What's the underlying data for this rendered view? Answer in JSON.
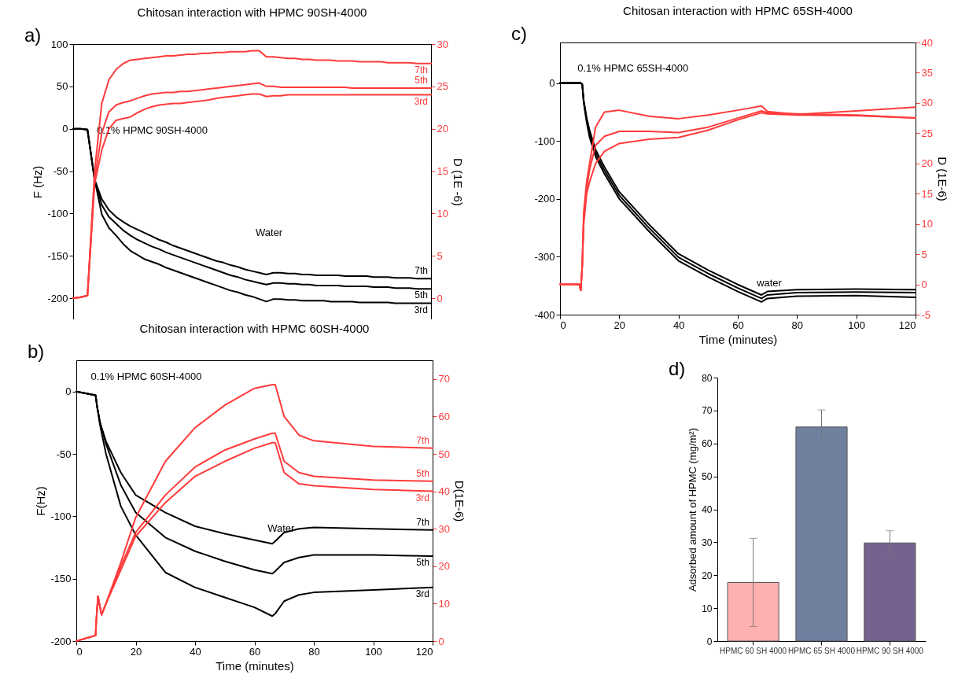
{
  "chart_data": [
    {
      "type": "line",
      "title": "Chitosan interaction with HPMC 90SH-4000",
      "ylabel": "F (Hz)",
      "y2label": "D (1E -6)",
      "tick_labels": "y",
      "categories": [
        null,
        null,
        null,
        null,
        null,
        null,
        null,
        null,
        null,
        null,
        null,
        null,
        null,
        null,
        null,
        null,
        null,
        null,
        null,
        null,
        null,
        null,
        null,
        null,
        null,
        null,
        null,
        null,
        null,
        null,
        null,
        null,
        null,
        null,
        null,
        null,
        null,
        null,
        null,
        null,
        null,
        null,
        null,
        null,
        null,
        null,
        null,
        null,
        null,
        null,
        null
      ],
      "ylim": [
        -225,
        100
      ],
      "yticks": [
        -200,
        -150,
        -100,
        -50,
        0,
        50,
        100
      ],
      "y2lim": [
        -2.5,
        30
      ],
      "y2ticks": [
        0,
        5,
        10,
        15,
        20,
        25,
        30
      ],
      "annotations": [
        "a)",
        "0.1% HPMC 90SH-4000",
        "Water"
      ],
      "series": [
        {
          "name": "7th",
          "color": "#000000",
          "values": [
            0,
            0,
            -1,
            -60,
            -83,
            -96,
            -104,
            -110,
            -115,
            -119,
            -123,
            -127,
            -131,
            -134,
            -138,
            -141,
            -144,
            -147,
            -150,
            -153,
            -156,
            -158,
            -161,
            -163,
            -166,
            -168,
            -170,
            -172,
            -170,
            -170,
            -171,
            -171,
            -172,
            -172,
            -173,
            -173,
            -173,
            -173,
            -174,
            -174,
            -174,
            -174,
            -175,
            -175,
            -175,
            -176,
            -176,
            -176,
            -177,
            -177,
            -177
          ]
        },
        {
          "name": "5th",
          "color": "#000000",
          "values": [
            0,
            0,
            -1,
            -60,
            -90,
            -104,
            -112,
            -120,
            -126,
            -131,
            -135,
            -139,
            -142,
            -146,
            -149,
            -152,
            -155,
            -158,
            -161,
            -164,
            -167,
            -170,
            -173,
            -175,
            -178,
            -180,
            -182,
            -184,
            -182,
            -182,
            -183,
            -183,
            -184,
            -184,
            -185,
            -185,
            -185,
            -185,
            -186,
            -186,
            -186,
            -186,
            -187,
            -187,
            -187,
            -188,
            -188,
            -188,
            -189,
            -189,
            -189
          ]
        },
        {
          "name": "3rd",
          "color": "#000000",
          "values": [
            0,
            0,
            -1,
            -60,
            -101,
            -117,
            -126,
            -136,
            -144,
            -149,
            -154,
            -157,
            -160,
            -164,
            -167,
            -170,
            -173,
            -176,
            -179,
            -182,
            -185,
            -188,
            -191,
            -193,
            -196,
            -198,
            -201,
            -204,
            -201,
            -201,
            -202,
            -202,
            -203,
            -203,
            -203,
            -203,
            -204,
            -204,
            -204,
            -204,
            -205,
            -205,
            -205,
            -205,
            -205,
            -206,
            -206,
            -206,
            -206,
            -206,
            -206
          ]
        },
        {
          "name": "7th",
          "color": "#ff3b3b",
          "axis": "y2",
          "values": [
            0,
            0.1,
            0.3,
            15,
            23,
            25.8,
            27,
            27.7,
            28.1,
            28.2,
            28.3,
            28.4,
            28.5,
            28.6,
            28.6,
            28.7,
            28.8,
            28.8,
            28.9,
            28.9,
            29,
            29,
            29.1,
            29.1,
            29.1,
            29.2,
            29.2,
            28.5,
            28.5,
            28.4,
            28.3,
            28.3,
            28.2,
            28.2,
            28.1,
            28.1,
            28.1,
            28,
            28,
            28,
            27.9,
            27.9,
            27.9,
            27.9,
            27.8,
            27.8,
            27.8,
            27.8,
            27.7,
            27.7,
            27.7
          ]
        },
        {
          "name": "5th",
          "color": "#ff3b3b",
          "axis": "y2",
          "values": [
            0,
            0.1,
            0.3,
            14,
            19.5,
            22,
            22.8,
            23.1,
            23.3,
            23.6,
            23.9,
            24.1,
            24.2,
            24.3,
            24.3,
            24.4,
            24.4,
            24.5,
            24.6,
            24.7,
            24.8,
            24.9,
            25,
            25.1,
            25.2,
            25.3,
            25.4,
            25,
            25,
            24.9,
            24.9,
            24.9,
            24.9,
            24.9,
            24.9,
            24.9,
            24.9,
            24.9,
            24.9,
            24.8,
            24.8,
            24.8,
            24.8,
            24.8,
            24.8,
            24.8,
            24.8,
            24.8,
            24.8,
            24.8,
            24.8
          ]
        },
        {
          "name": "3rd",
          "color": "#ff3b3b",
          "axis": "y2",
          "values": [
            0,
            0.1,
            0.3,
            13.5,
            17.5,
            20,
            21,
            21.2,
            21.4,
            21.9,
            22.3,
            22.6,
            22.8,
            22.9,
            23,
            23,
            23.1,
            23.2,
            23.3,
            23.4,
            23.6,
            23.7,
            23.8,
            23.9,
            24,
            24.1,
            24.1,
            23.8,
            23.9,
            23.9,
            24,
            24,
            24,
            24,
            24,
            24,
            24,
            24,
            24,
            24,
            24,
            24,
            24,
            24,
            24,
            24,
            24,
            24,
            24,
            24,
            24
          ]
        }
      ]
    },
    {
      "type": "line",
      "title": "Chitosan interaction with HPMC 60SH-4000",
      "xlabel": "Time (minutes)",
      "ylabel": "F(Hz)",
      "y2label": "D(1E-6)",
      "xlim": [
        0,
        120
      ],
      "xticks": [
        0,
        20,
        40,
        60,
        80,
        100,
        120
      ],
      "ylim": [
        -200,
        25
      ],
      "yticks": [
        -200,
        -150,
        -100,
        -50,
        0
      ],
      "y2lim": [
        0,
        75
      ],
      "y2ticks": [
        0,
        10,
        20,
        30,
        40,
        50,
        60,
        70
      ],
      "annotations": [
        "b)",
        {
          "text": "0.1% HPMC 60SH-4000",
          "x": 6.5,
          "y": 0
        },
        {
          "text": "Water",
          "x": 66,
          "y": -122
        }
      ],
      "series": [
        {
          "name": "7th",
          "color": "#000000",
          "x": [
            0,
            6.5,
            7,
            8,
            10,
            15,
            20,
            30,
            40,
            50,
            60,
            66,
            67,
            70,
            75,
            80,
            100,
            120
          ],
          "values": [
            0,
            -3,
            -12,
            -25,
            -40,
            -65,
            -83,
            -97,
            -108,
            -114,
            -119,
            -122,
            -120,
            -113,
            -110,
            -109,
            -110,
            -111
          ]
        },
        {
          "name": "5th",
          "color": "#000000",
          "x": [
            0,
            6.5,
            7,
            8,
            10,
            15,
            20,
            30,
            40,
            50,
            60,
            66,
            67,
            70,
            75,
            80,
            100,
            120
          ],
          "values": [
            0,
            -3,
            -12,
            -25,
            -42,
            -75,
            -97,
            -117,
            -128,
            -136,
            -143,
            -146,
            -144,
            -137,
            -133,
            -131,
            -131,
            -132
          ]
        },
        {
          "name": "3rd",
          "color": "#000000",
          "x": [
            0,
            6.5,
            7,
            8,
            10,
            15,
            20,
            30,
            40,
            50,
            60,
            66,
            67,
            70,
            75,
            80,
            100,
            120
          ],
          "values": [
            0,
            -3,
            -12,
            -27,
            -50,
            -92,
            -115,
            -145,
            -157,
            -165,
            -173,
            -180,
            -178,
            -168,
            -163,
            -161,
            -159,
            -157
          ]
        },
        {
          "name": "7th",
          "color": "#ff3b3b",
          "axis": "y2",
          "x": [
            0,
            6.5,
            6.7,
            7.3,
            8.5,
            10,
            15,
            20,
            30,
            40,
            50,
            60,
            66,
            67,
            70,
            75,
            80,
            100,
            120
          ],
          "values": [
            0,
            1.5,
            5,
            12,
            7,
            10,
            21,
            33,
            48,
            57,
            63,
            67.5,
            68.5,
            68.5,
            60,
            55,
            53.5,
            52,
            51.5
          ]
        },
        {
          "name": "5th",
          "color": "#ff3b3b",
          "axis": "y2",
          "x": [
            0,
            6.5,
            6.7,
            7.3,
            8.5,
            10,
            15,
            20,
            30,
            40,
            50,
            60,
            66,
            67,
            70,
            75,
            80,
            100,
            120
          ],
          "values": [
            0,
            1.5,
            5,
            12,
            7,
            10,
            20,
            29,
            39,
            46.5,
            51,
            54,
            55.5,
            55.5,
            48,
            45,
            44,
            43,
            42.7
          ]
        },
        {
          "name": "3rd",
          "color": "#ff3b3b",
          "axis": "y2",
          "x": [
            0,
            6.5,
            6.7,
            7.3,
            8.5,
            10,
            15,
            20,
            30,
            40,
            50,
            60,
            66,
            67,
            70,
            75,
            80,
            100,
            120
          ],
          "values": [
            0,
            1.5,
            5,
            12,
            7,
            10,
            19,
            28,
            37,
            44,
            48,
            51.5,
            53,
            53,
            45,
            42,
            41.5,
            40.5,
            40
          ]
        }
      ]
    },
    {
      "type": "line",
      "title": "Chitosan interaction with HPMC 65SH-4000",
      "xlabel": "Time (minutes)",
      "y2label": "D (1E-6)",
      "xlim": [
        0,
        120
      ],
      "xticks": [
        0,
        20,
        40,
        60,
        80,
        100,
        120
      ],
      "ylim": [
        -400,
        70
      ],
      "yticks": [
        -400,
        -300,
        -200,
        -100,
        0
      ],
      "y2lim": [
        -5,
        40
      ],
      "y2ticks": [
        -5,
        0,
        5,
        10,
        15,
        20,
        25,
        30,
        35,
        40
      ],
      "annotations": [
        "c)",
        {
          "text": "0.1% HPMC 65SH-4000",
          "x": 7.5,
          "y": 0
        },
        {
          "text": "water",
          "x": 68,
          "y": -372
        }
      ],
      "series": [
        {
          "color": "#000000",
          "x": [
            0,
            7,
            7.5,
            8,
            9,
            10,
            12,
            15,
            20,
            30,
            40,
            50,
            60,
            68,
            70,
            80,
            100,
            120
          ],
          "values": [
            0,
            0,
            -2,
            -30,
            -60,
            -82,
            -115,
            -145,
            -188,
            -244,
            -295,
            -323,
            -348,
            -366,
            -360,
            -357,
            -356,
            -357
          ]
        },
        {
          "color": "#000000",
          "x": [
            0,
            7,
            7.5,
            8,
            9,
            10,
            12,
            15,
            20,
            30,
            40,
            50,
            60,
            68,
            70,
            80,
            100,
            120
          ],
          "values": [
            0,
            0,
            -2,
            -32,
            -64,
            -88,
            -121,
            -151,
            -194,
            -250,
            -301,
            -329,
            -354,
            -372,
            -366,
            -362,
            -361,
            -362
          ]
        },
        {
          "color": "#000000",
          "x": [
            0,
            7,
            7.5,
            8,
            9,
            10,
            12,
            15,
            20,
            30,
            40,
            50,
            60,
            68,
            70,
            80,
            100,
            120
          ],
          "values": [
            0,
            0,
            -2,
            -34,
            -68,
            -94,
            -127,
            -157,
            -200,
            -256,
            -307,
            -335,
            -360,
            -378,
            -372,
            -368,
            -367,
            -370
          ]
        },
        {
          "color": "#ff3b3b",
          "axis": "y2",
          "x": [
            0,
            6.5,
            7,
            7.5,
            8,
            9,
            10,
            12,
            15,
            20,
            30,
            40,
            50,
            60,
            68,
            70,
            80,
            100,
            120
          ],
          "values": [
            0,
            0,
            -1,
            3,
            12,
            17,
            20,
            26,
            28.5,
            28.8,
            27.8,
            27.4,
            28,
            28.8,
            29.5,
            28.6,
            28.1,
            28.7,
            29.3
          ]
        },
        {
          "color": "#ff3b3b",
          "axis": "y2",
          "x": [
            0,
            6.5,
            7,
            7.5,
            8,
            9,
            10,
            12,
            15,
            20,
            30,
            40,
            50,
            60,
            68,
            70,
            80,
            100,
            120
          ],
          "values": [
            0,
            0,
            -1,
            3,
            11,
            16,
            19,
            23,
            24.5,
            25.3,
            25.3,
            25.1,
            26,
            27.5,
            28.7,
            28.4,
            28.2,
            28,
            27.5
          ]
        },
        {
          "color": "#ff3b3b",
          "axis": "y2",
          "x": [
            0,
            6.5,
            7,
            7.5,
            8,
            9,
            10,
            12,
            15,
            20,
            30,
            40,
            50,
            60,
            68,
            70,
            80,
            100,
            120
          ],
          "values": [
            0,
            0,
            -1,
            3,
            10,
            15,
            17,
            20,
            22,
            23.3,
            24,
            24.3,
            25.5,
            27.2,
            28.4,
            28.2,
            28,
            27.9,
            27.5
          ]
        }
      ]
    },
    {
      "type": "bar",
      "ylabel": "Adsorbed amount of HPMC (mg/m²)",
      "categories": [
        "HPMC 60 SH 4000",
        "HPMC 65 SH 4000",
        "HPMC 90 SH 4000"
      ],
      "values": [
        17.8,
        65,
        29.8
      ],
      "errors": [
        13.4,
        5.2,
        3.7
      ],
      "colors": [
        "#ffb0b0",
        "#6f809f",
        "#75628f"
      ],
      "ylim": [
        0,
        80
      ],
      "yticks": [
        0,
        10,
        20,
        30,
        40,
        50,
        60,
        70,
        80
      ],
      "annotations": [
        "d)"
      ]
    }
  ]
}
